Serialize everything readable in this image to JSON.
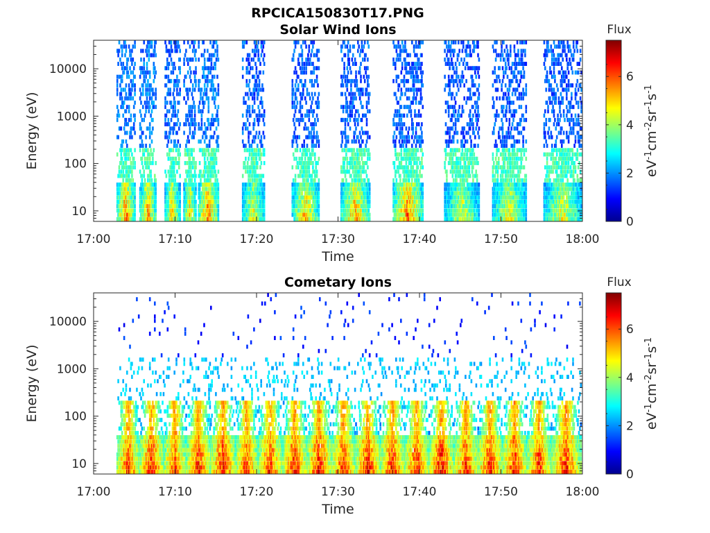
{
  "figure_title": "RPCICA150830T17.PNG",
  "chart_data": [
    {
      "type": "heatmap",
      "title": "Solar Wind Ions",
      "xlabel": "Time",
      "ylabel": "Energy (eV)",
      "x_ticks": [
        "17:00",
        "17:10",
        "17:20",
        "17:30",
        "17:40",
        "17:50",
        "18:00"
      ],
      "x_range_minutes": [
        0,
        60
      ],
      "y_ticks": [
        "10",
        "100",
        "1000",
        "10000"
      ],
      "y_tick_values": [
        10,
        100,
        1000,
        10000
      ],
      "y_scale": "log",
      "y_range_eV": [
        6,
        40000
      ],
      "colorbar": {
        "label": "Flux",
        "units_label": "eV-1cm-2sr-1s-1",
        "ticks": [
          "0",
          "2",
          "4",
          "6"
        ],
        "range": [
          0,
          7.5
        ],
        "colormap": "jet"
      },
      "grid": false,
      "bursts_minutes": [
        {
          "start": 2.8,
          "end": 5.0,
          "low_flux": 6.0,
          "high_energy_flux": 1.3
        },
        {
          "start": 5.6,
          "end": 7.6,
          "low_flux": 5.7,
          "high_energy_flux": 1.3
        },
        {
          "start": 8.7,
          "end": 10.5,
          "low_flux": 5.4,
          "high_energy_flux": 1.2
        },
        {
          "start": 11.0,
          "end": 12.5,
          "low_flux": 5.4,
          "high_energy_flux": 1.2
        },
        {
          "start": 12.8,
          "end": 15.2,
          "low_flux": 6.2,
          "high_energy_flux": 1.3
        },
        {
          "start": 18.2,
          "end": 20.9,
          "low_flux": 5.0,
          "high_energy_flux": 1.1
        },
        {
          "start": 24.3,
          "end": 27.6,
          "low_flux": 5.5,
          "high_energy_flux": 1.1
        },
        {
          "start": 30.3,
          "end": 33.8,
          "low_flux": 5.7,
          "high_energy_flux": 1.1
        },
        {
          "start": 36.7,
          "end": 40.3,
          "low_flux": 6.2,
          "high_energy_flux": 1.1
        },
        {
          "start": 43.0,
          "end": 47.3,
          "low_flux": 4.8,
          "high_energy_flux": 1.1
        },
        {
          "start": 48.9,
          "end": 53.0,
          "low_flux": 5.0,
          "high_energy_flux": 1.1
        },
        {
          "start": 55.2,
          "end": 59.8,
          "low_flux": 5.0,
          "high_energy_flux": 1.1
        }
      ]
    },
    {
      "type": "heatmap",
      "title": "Cometary Ions",
      "xlabel": "Time",
      "ylabel": "Energy (eV)",
      "x_ticks": [
        "17:00",
        "17:10",
        "17:20",
        "17:30",
        "17:40",
        "17:50",
        "18:00"
      ],
      "x_range_minutes": [
        0,
        60
      ],
      "y_ticks": [
        "10",
        "100",
        "1000",
        "10000"
      ],
      "y_tick_values": [
        10,
        100,
        1000,
        10000
      ],
      "y_scale": "log",
      "y_range_eV": [
        6,
        40000
      ],
      "colorbar": {
        "label": "Flux",
        "units_label": "eV-1cm-2sr-1s-1",
        "ticks": [
          "0",
          "2",
          "4",
          "6"
        ],
        "range": [
          0,
          7.5
        ],
        "colormap": "jet"
      },
      "grid": false,
      "bursts_minutes": [
        {
          "start": 2.8,
          "end": 5.6,
          "low_flux": 6.6
        },
        {
          "start": 5.6,
          "end": 8.5,
          "low_flux": 6.8
        },
        {
          "start": 8.5,
          "end": 11.3,
          "low_flux": 6.5
        },
        {
          "start": 11.3,
          "end": 14.3,
          "low_flux": 6.8
        },
        {
          "start": 14.3,
          "end": 17.3,
          "low_flux": 6.9
        },
        {
          "start": 17.3,
          "end": 20.1,
          "low_flux": 6.6
        },
        {
          "start": 20.1,
          "end": 23.1,
          "low_flux": 6.6
        },
        {
          "start": 23.1,
          "end": 26.1,
          "low_flux": 6.9
        },
        {
          "start": 26.1,
          "end": 29.1,
          "low_flux": 6.9
        },
        {
          "start": 29.1,
          "end": 32.1,
          "low_flux": 6.7
        },
        {
          "start": 32.1,
          "end": 35.1,
          "low_flux": 6.9
        },
        {
          "start": 35.1,
          "end": 38.1,
          "low_flux": 6.8
        },
        {
          "start": 38.1,
          "end": 41.1,
          "low_flux": 6.7
        },
        {
          "start": 41.1,
          "end": 44.1,
          "low_flux": 7.0
        },
        {
          "start": 44.1,
          "end": 47.1,
          "low_flux": 6.7
        },
        {
          "start": 47.1,
          "end": 50.1,
          "low_flux": 6.9
        },
        {
          "start": 50.1,
          "end": 53.1,
          "low_flux": 6.8
        },
        {
          "start": 53.1,
          "end": 56.1,
          "low_flux": 6.6
        },
        {
          "start": 56.1,
          "end": 59.7,
          "low_flux": 6.7
        }
      ]
    }
  ]
}
